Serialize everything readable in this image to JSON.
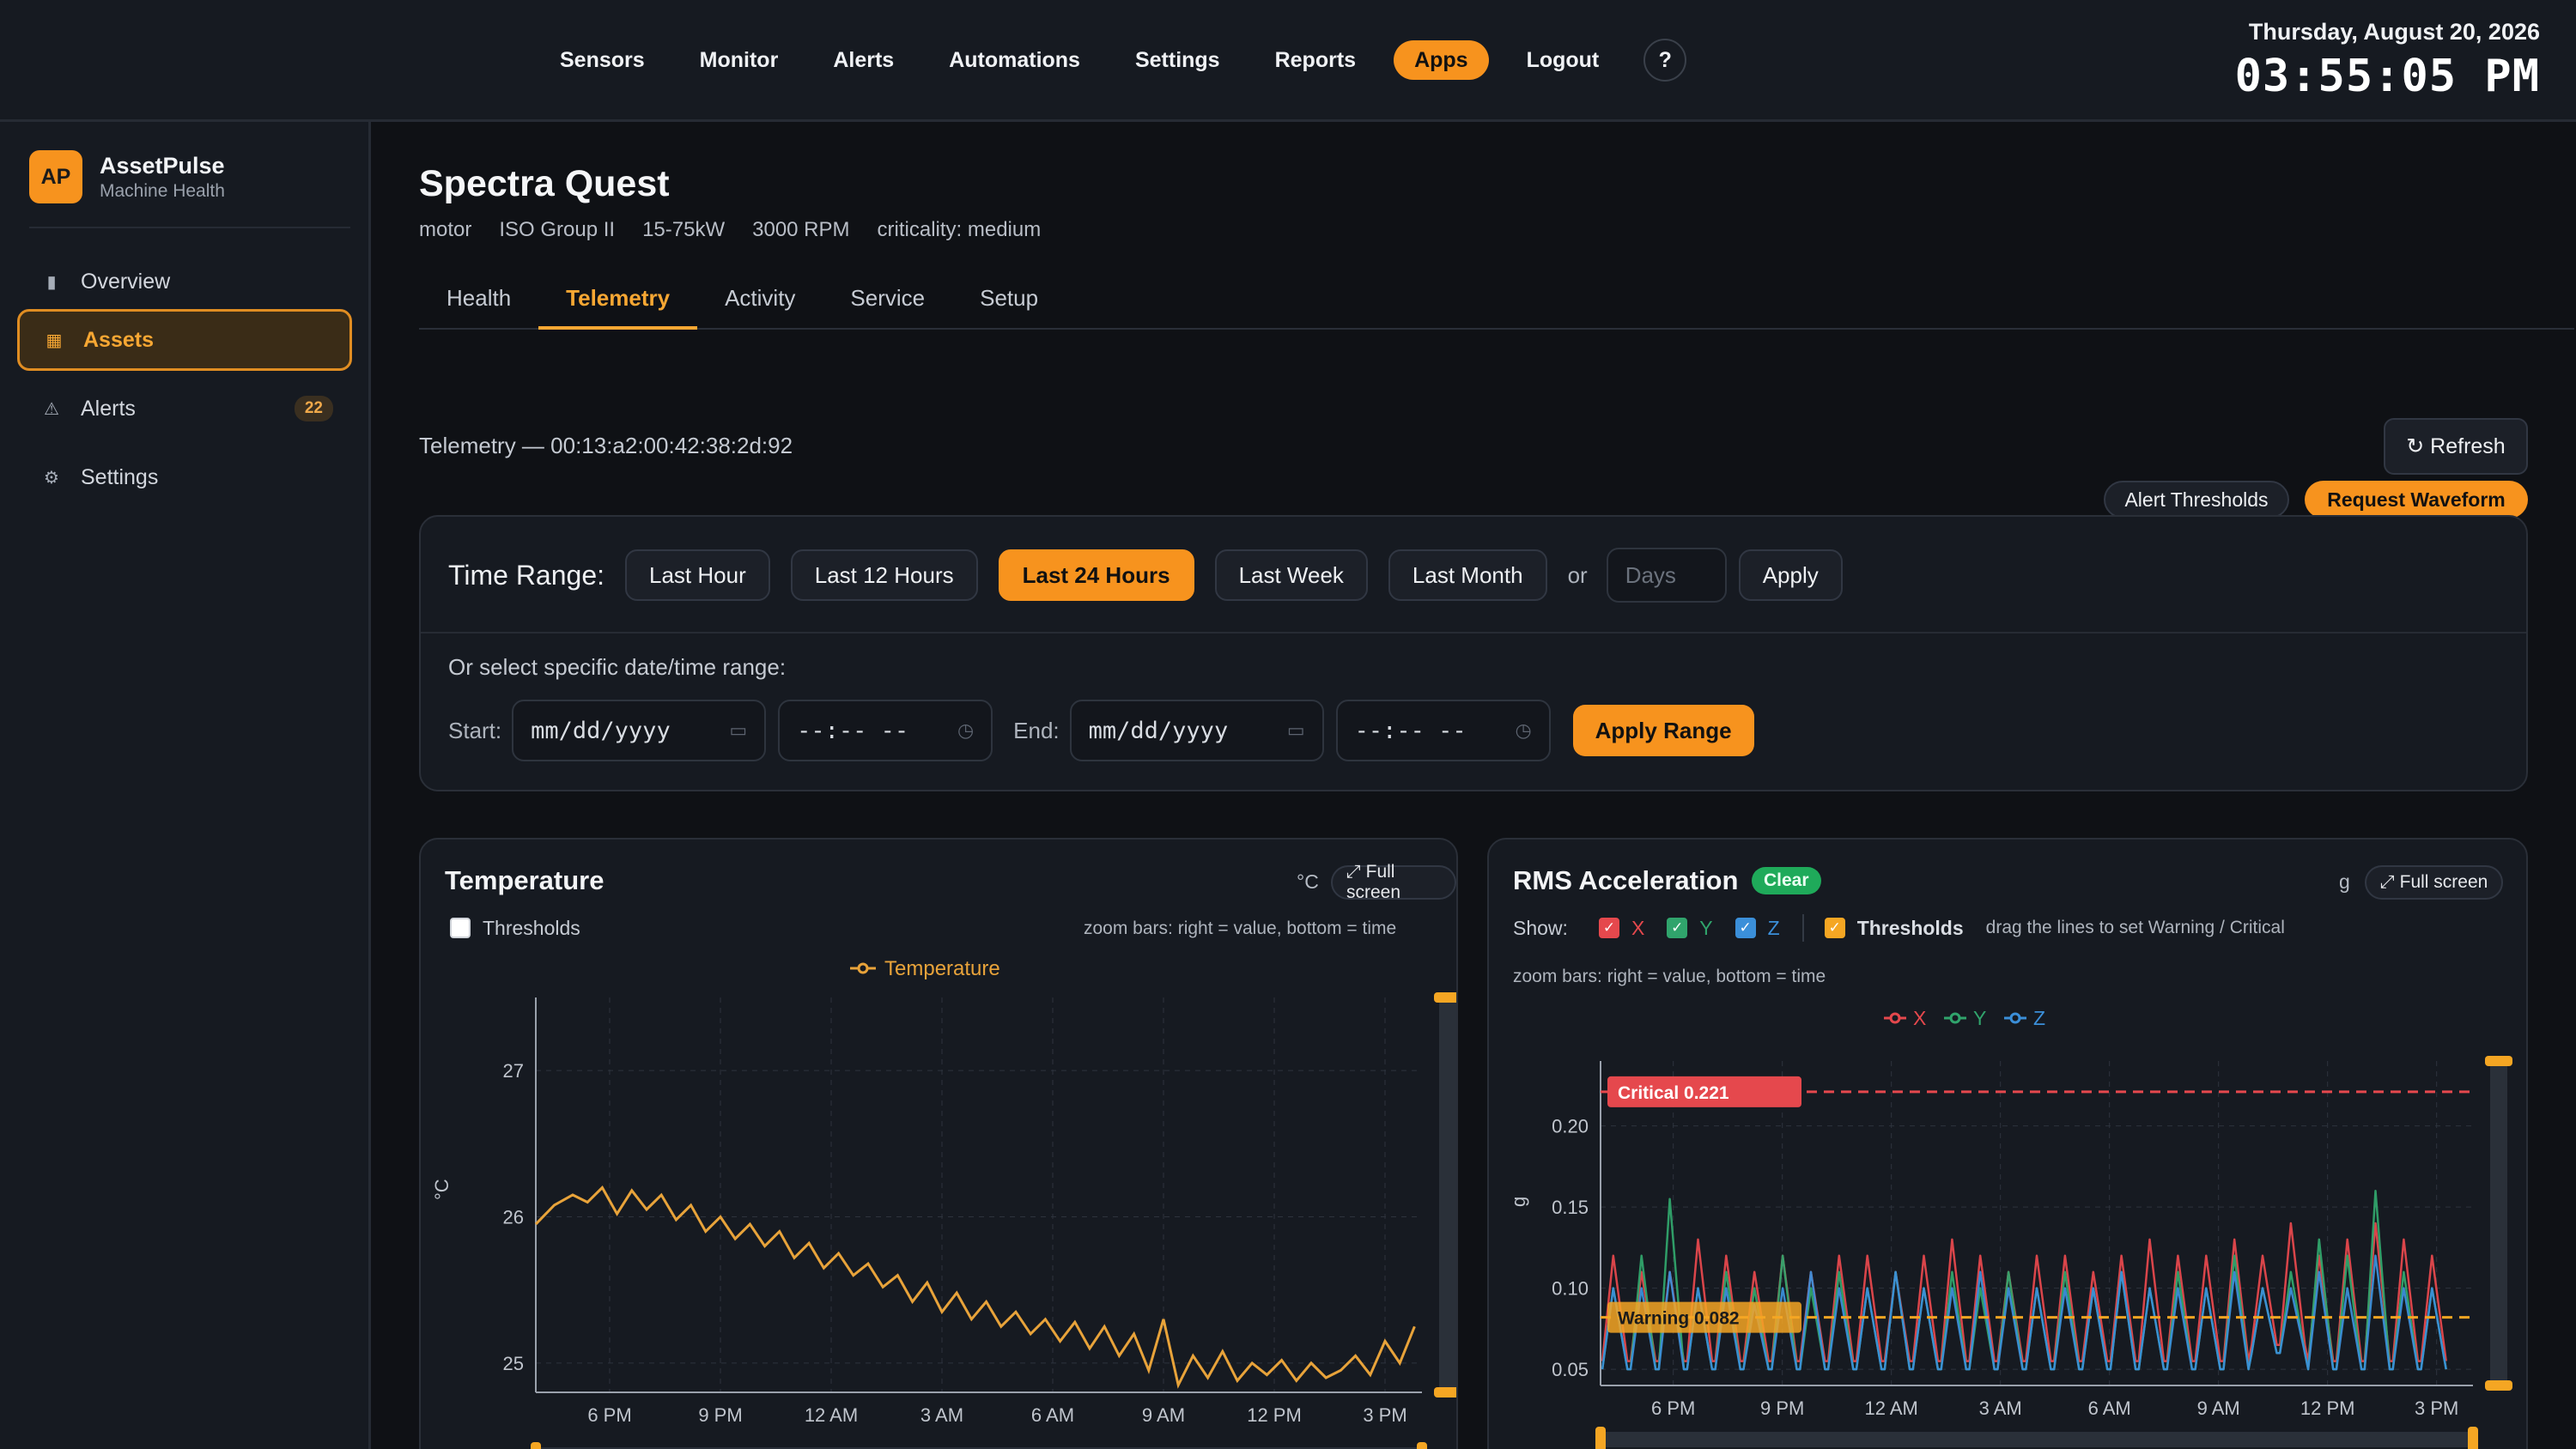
{
  "topnav": {
    "items": [
      "Sensors",
      "Monitor",
      "Alerts",
      "Automations",
      "Settings",
      "Reports",
      "Apps",
      "Logout"
    ],
    "active": "Apps",
    "help": "?"
  },
  "clock": {
    "date": "Thursday, August 20, 2026",
    "time": "03:55:05 PM"
  },
  "brand": {
    "logo": "AP",
    "name": "AssetPulse",
    "tagline": "Machine Health"
  },
  "sidebar": {
    "items": [
      {
        "label": "Overview",
        "icon": "▮"
      },
      {
        "label": "Assets",
        "icon": "▦"
      },
      {
        "label": "Alerts",
        "icon": "⚠",
        "badge": "22"
      },
      {
        "label": "Settings",
        "icon": "⚙"
      }
    ],
    "active": "Assets"
  },
  "asset": {
    "title": "Spectra Quest",
    "meta": [
      "motor",
      "ISO Group II",
      "15-75kW",
      "3000 RPM",
      "criticality: medium"
    ]
  },
  "tabs": [
    "Health",
    "Telemetry",
    "Activity",
    "Service",
    "Setup"
  ],
  "active_tab": "Telemetry",
  "actions": {
    "alert_thresholds": "Alert Thresholds",
    "request_waveform": "Request Waveform"
  },
  "telemetry": {
    "id_label": "Telemetry — 00:13:a2:00:42:38:2d:92",
    "refresh": "↻ Refresh"
  },
  "time_range": {
    "label": "Time Range:",
    "options": [
      "Last Hour",
      "Last 12 Hours",
      "Last 24 Hours",
      "Last Week",
      "Last Month"
    ],
    "active": "Last 24 Hours",
    "or": "or",
    "days_placeholder": "Days",
    "apply": "Apply",
    "specific_label": "Or select specific date/time range:",
    "start_label": "Start:",
    "end_label": "End:",
    "date_placeholder": "mm/dd/yyyy",
    "time_placeholder": "--:-- --",
    "apply_range": "Apply Range"
  },
  "temperature_card": {
    "title": "Temperature",
    "unit": "°C",
    "fullscreen": "⤢ Full screen",
    "thresholds_label": "Thresholds",
    "thresholds_checked": false,
    "hint": "zoom bars: right = value, bottom = time",
    "legend": "Temperature",
    "ylabel": "°C"
  },
  "rms_card": {
    "title": "RMS Acceleration",
    "status": "Clear",
    "unit": "g",
    "fullscreen": "⤢ Full screen",
    "show_label": "Show:",
    "axes": [
      "X",
      "Y",
      "Z"
    ],
    "thresholds_label": "Thresholds",
    "drag_hint": "drag the lines to set Warning / Critical",
    "hint": "zoom bars: right = value, bottom = time",
    "ylabel": "g",
    "critical_label": "Critical 0.221",
    "warning_label": "Warning 0.082"
  },
  "colors": {
    "accent": "#f7931e",
    "temperature": "#e8a33a",
    "x": "#e5484d",
    "y": "#30a46c",
    "z": "#3b8fd9",
    "critical": "#e5484d",
    "warning": "#f5a623",
    "clear": "#1faa5a"
  },
  "chart_data": [
    {
      "type": "line",
      "title": "Temperature",
      "ylabel": "°C",
      "ylim": [
        24.8,
        27.5
      ],
      "xlim": [
        0,
        24
      ],
      "x_ticks": [
        "6 PM",
        "9 PM",
        "12 AM",
        "3 AM",
        "6 AM",
        "9 AM",
        "12 PM",
        "3 PM"
      ],
      "y_ticks": [
        25,
        26,
        27
      ],
      "series": [
        {
          "name": "Temperature",
          "x": [
            0,
            0.5,
            1,
            1.4,
            1.8,
            2.2,
            2.6,
            3,
            3.4,
            3.8,
            4.2,
            4.6,
            5,
            5.4,
            5.8,
            6.2,
            6.6,
            7,
            7.4,
            7.8,
            8.2,
            8.6,
            9,
            9.4,
            9.8,
            10.2,
            10.6,
            11,
            11.4,
            11.8,
            12.2,
            12.6,
            13,
            13.4,
            13.8,
            14.2,
            14.6,
            15,
            15.4,
            15.8,
            16.2,
            16.6,
            17,
            17.4,
            17.8,
            18.2,
            18.6,
            19,
            19.4,
            19.8,
            20.2,
            20.6,
            21,
            21.4,
            21.8,
            22.2,
            22.6,
            23,
            23.4,
            23.8
          ],
          "values": [
            25.95,
            26.08,
            26.15,
            26.1,
            26.2,
            26.02,
            26.18,
            26.05,
            26.15,
            25.98,
            26.08,
            25.9,
            26.0,
            25.85,
            25.95,
            25.8,
            25.9,
            25.72,
            25.82,
            25.65,
            25.75,
            25.6,
            25.68,
            25.52,
            25.6,
            25.42,
            25.55,
            25.35,
            25.48,
            25.3,
            25.42,
            25.25,
            25.35,
            25.2,
            25.3,
            25.15,
            25.28,
            25.1,
            25.25,
            25.05,
            25.2,
            24.95,
            25.3,
            24.85,
            25.05,
            24.9,
            25.08,
            24.88,
            25.0,
            24.92,
            25.02,
            24.88,
            25.0,
            24.9,
            24.95,
            25.05,
            24.92,
            25.15,
            25.0,
            25.25
          ]
        }
      ]
    },
    {
      "type": "line",
      "title": "RMS Acceleration",
      "ylabel": "g",
      "ylim": [
        0.04,
        0.24
      ],
      "xlim": [
        0,
        24
      ],
      "x_ticks": [
        "6 PM",
        "9 PM",
        "12 AM",
        "3 AM",
        "6 AM",
        "9 AM",
        "12 PM",
        "3 PM"
      ],
      "y_ticks": [
        0.05,
        0.1,
        0.15,
        0.2
      ],
      "thresholds": {
        "critical": 0.221,
        "warning": 0.082
      },
      "series": [
        {
          "name": "X",
          "peaks": [
            0.12,
            0.11,
            0.11,
            0.13,
            0.12,
            0.11,
            0.12,
            0.11,
            0.12,
            0.12,
            0.11,
            0.12,
            0.13,
            0.12,
            0.11,
            0.12,
            0.12,
            0.11,
            0.12,
            0.13,
            0.12,
            0.12,
            0.13,
            0.12,
            0.14,
            0.12,
            0.13,
            0.14,
            0.13,
            0.12
          ],
          "base": 0.055
        },
        {
          "name": "Y",
          "peaks": [
            0.1,
            0.12,
            0.155,
            0.1,
            0.11,
            0.1,
            0.12,
            0.1,
            0.11,
            0.1,
            0.11,
            0.1,
            0.11,
            0.1,
            0.11,
            0.1,
            0.11,
            0.1,
            0.11,
            0.1,
            0.11,
            0.1,
            0.12,
            0.1,
            0.11,
            0.13,
            0.12,
            0.16,
            0.11,
            0.1
          ],
          "base": 0.05
        },
        {
          "name": "Z",
          "peaks": [
            0.1,
            0.1,
            0.11,
            0.1,
            0.1,
            0.09,
            0.1,
            0.11,
            0.1,
            0.1,
            0.11,
            0.1,
            0.1,
            0.11,
            0.1,
            0.1,
            0.1,
            0.1,
            0.11,
            0.1,
            0.1,
            0.1,
            0.11,
            0.1,
            0.1,
            0.11,
            0.1,
            0.12,
            0.1,
            0.1
          ],
          "base": 0.05
        }
      ]
    }
  ]
}
